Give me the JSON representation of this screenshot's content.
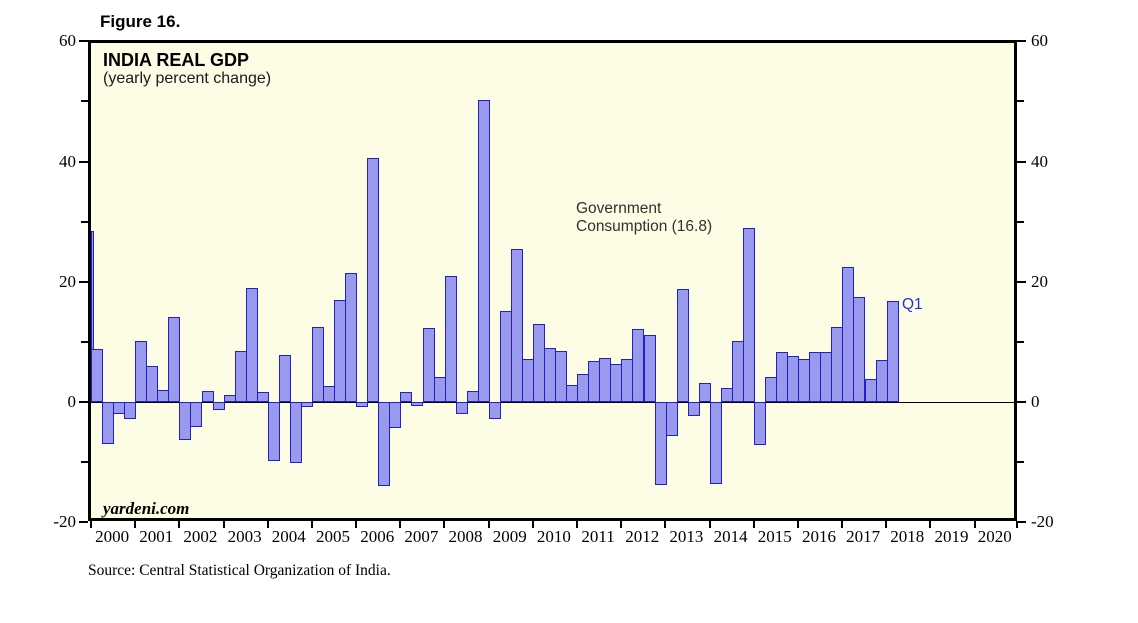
{
  "figure": {
    "label": "Figure 16."
  },
  "colors": {
    "plot_background": "#fdfde6",
    "bar_fill": "#9999ee",
    "bar_border": "#2121cb",
    "frame": "#000000",
    "q1_label": "#2233cc"
  },
  "chart_data": {
    "type": "bar",
    "title": "INDIA REAL GDP",
    "subtitle": "(yearly percent change)",
    "series_name": "Government Consumption",
    "annotation": {
      "line1": "Government",
      "line2": "Consumption (16.8)"
    },
    "latest_point_label": "Q1",
    "latest_value": 16.8,
    "watermark": "yardeni.com",
    "source": "Source: Central Statistical Organization of India.",
    "ylim": [
      -20,
      60
    ],
    "yticks_major": [
      60,
      40,
      20,
      0,
      -20
    ],
    "yticks_minor": [
      50,
      30,
      10,
      -10
    ],
    "x_year_labels": [
      "2000",
      "2001",
      "2002",
      "2003",
      "2004",
      "2005",
      "2006",
      "2007",
      "2008",
      "2009",
      "2010",
      "2011",
      "2012",
      "2013",
      "2014",
      "2015",
      "2016",
      "2017",
      "2018",
      "2019",
      "2020"
    ],
    "start_quarter": "2000-Q1",
    "end_quarter": "2018-Q1",
    "clipped_leading_bar": {
      "quarter": "1999-Q4",
      "value": 28.5
    },
    "values": [
      8.8,
      -7.0,
      -2.0,
      -2.9,
      10.2,
      6.0,
      2.0,
      14.2,
      -6.3,
      -4.2,
      1.8,
      -1.3,
      1.2,
      8.5,
      18.9,
      1.6,
      -9.8,
      7.9,
      -10.2,
      -0.8,
      12.4,
      2.6,
      16.9,
      21.4,
      -0.8,
      40.5,
      -13.9,
      -4.3,
      1.6,
      -0.6,
      12.3,
      4.1,
      20.9,
      -2.0,
      1.9,
      50.3,
      -2.8,
      15.1,
      25.4,
      7.1,
      12.9,
      8.9,
      8.5,
      2.9,
      4.6,
      6.8,
      7.4,
      6.4,
      7.1,
      12.1,
      11.2,
      -13.8,
      -5.7,
      18.8,
      -2.3,
      3.1,
      -13.6,
      2.4,
      10.1,
      29.0,
      -7.1,
      4.1,
      8.3,
      7.7,
      7.1,
      8.3,
      8.3,
      12.4,
      22.4,
      17.5,
      3.8,
      7.0,
      16.8
    ],
    "grid": "zero-line-only",
    "legend": "none"
  }
}
